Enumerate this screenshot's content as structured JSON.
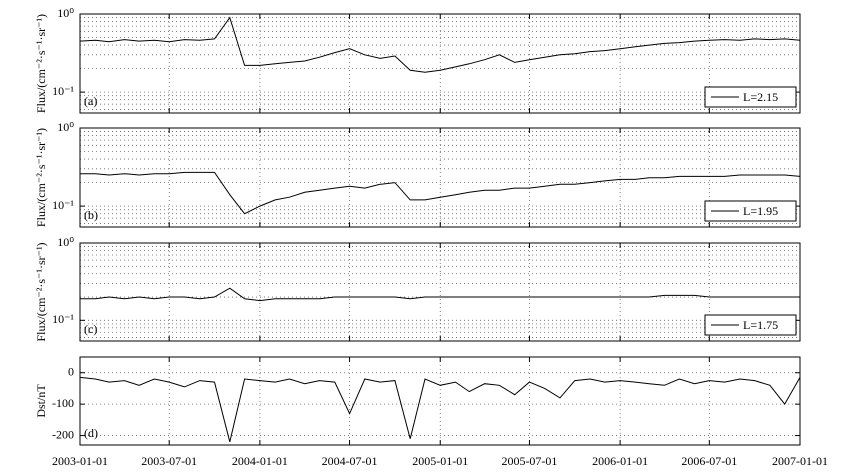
{
  "chart_data": [
    {
      "type": "line",
      "annotation": "(a)",
      "y_label": "Flux/(cm⁻²·s⁻¹·sr⁻¹)",
      "log_y": true,
      "grid": true,
      "legend": "lower right",
      "xlim": [
        "2003-01-01",
        "2007-01-01"
      ],
      "xticks": [
        "2003-01-01",
        "2003-07-01",
        "2004-01-01",
        "2004-07-01",
        "2005-01-01",
        "2005-07-01",
        "2006-01-01",
        "2006-07-01",
        "2007-01-01"
      ],
      "ylim": [
        0.054,
        1
      ],
      "yticks": [
        {
          "value": 1,
          "label": "10⁰"
        },
        {
          "value": 0.1,
          "label": "10⁻¹"
        }
      ],
      "yminorticks": [
        0.06,
        0.07,
        0.08,
        0.09,
        0.2,
        0.3,
        0.4,
        0.5,
        0.6,
        0.7,
        0.8,
        0.9
      ],
      "x": [
        "2003-01-01",
        "2003-02-01",
        "2003-03-01",
        "2003-04-01",
        "2003-05-01",
        "2003-06-01",
        "2003-07-01",
        "2003-08-01",
        "2003-09-01",
        "2003-10-01",
        "2003-11-01",
        "2003-12-01",
        "2004-01-01",
        "2004-02-01",
        "2004-03-01",
        "2004-04-01",
        "2004-05-01",
        "2004-06-01",
        "2004-07-01",
        "2004-08-01",
        "2004-09-01",
        "2004-10-01",
        "2004-11-01",
        "2004-12-01",
        "2005-01-01",
        "2005-02-01",
        "2005-03-01",
        "2005-04-01",
        "2005-05-01",
        "2005-06-01",
        "2005-07-01",
        "2005-08-01",
        "2005-09-01",
        "2005-10-01",
        "2005-11-01",
        "2005-12-01",
        "2006-01-01",
        "2006-02-01",
        "2006-03-01",
        "2006-04-01",
        "2006-05-01",
        "2006-06-01",
        "2006-07-01",
        "2006-08-01",
        "2006-09-01",
        "2006-10-01",
        "2006-11-01",
        "2006-12-01",
        "2007-01-01"
      ],
      "series": [
        {
          "name": "L=2.15",
          "color": "#000000",
          "values": [
            0.45,
            0.46,
            0.44,
            0.47,
            0.45,
            0.46,
            0.44,
            0.47,
            0.46,
            0.48,
            0.9,
            0.22,
            0.22,
            0.23,
            0.24,
            0.25,
            0.28,
            0.32,
            0.36,
            0.3,
            0.27,
            0.29,
            0.19,
            0.18,
            0.19,
            0.21,
            0.23,
            0.26,
            0.3,
            0.24,
            0.26,
            0.28,
            0.3,
            0.31,
            0.33,
            0.34,
            0.36,
            0.38,
            0.4,
            0.42,
            0.43,
            0.45,
            0.46,
            0.47,
            0.46,
            0.48,
            0.47,
            0.48,
            0.46
          ]
        }
      ]
    },
    {
      "type": "line",
      "annotation": "(b)",
      "y_label": "Flux/(cm⁻²·s⁻¹·sr⁻¹)",
      "log_y": true,
      "grid": true,
      "legend": "lower right",
      "xlim": [
        "2003-01-01",
        "2007-01-01"
      ],
      "xticks": [
        "2003-01-01",
        "2003-07-01",
        "2004-01-01",
        "2004-07-01",
        "2005-01-01",
        "2005-07-01",
        "2006-01-01",
        "2006-07-01",
        "2007-01-01"
      ],
      "ylim": [
        0.054,
        1
      ],
      "yticks": [
        {
          "value": 1,
          "label": "10⁰"
        },
        {
          "value": 0.1,
          "label": "10⁻¹"
        }
      ],
      "yminorticks": [
        0.06,
        0.07,
        0.08,
        0.09,
        0.2,
        0.3,
        0.4,
        0.5,
        0.6,
        0.7,
        0.8,
        0.9
      ],
      "x": [
        "2003-01-01",
        "2003-02-01",
        "2003-03-01",
        "2003-04-01",
        "2003-05-01",
        "2003-06-01",
        "2003-07-01",
        "2003-08-01",
        "2003-09-01",
        "2003-10-01",
        "2003-11-01",
        "2003-12-01",
        "2004-01-01",
        "2004-02-01",
        "2004-03-01",
        "2004-04-01",
        "2004-05-01",
        "2004-06-01",
        "2004-07-01",
        "2004-08-01",
        "2004-09-01",
        "2004-10-01",
        "2004-11-01",
        "2004-12-01",
        "2005-01-01",
        "2005-02-01",
        "2005-03-01",
        "2005-04-01",
        "2005-05-01",
        "2005-06-01",
        "2005-07-01",
        "2005-08-01",
        "2005-09-01",
        "2005-10-01",
        "2005-11-01",
        "2005-12-01",
        "2006-01-01",
        "2006-02-01",
        "2006-03-01",
        "2006-04-01",
        "2006-05-01",
        "2006-06-01",
        "2006-07-01",
        "2006-08-01",
        "2006-09-01",
        "2006-10-01",
        "2006-11-01",
        "2006-12-01",
        "2007-01-01"
      ],
      "series": [
        {
          "name": "L=1.95",
          "color": "#000000",
          "values": [
            0.26,
            0.26,
            0.25,
            0.26,
            0.25,
            0.26,
            0.26,
            0.27,
            0.27,
            0.27,
            0.14,
            0.08,
            0.1,
            0.12,
            0.13,
            0.15,
            0.16,
            0.17,
            0.18,
            0.17,
            0.19,
            0.2,
            0.12,
            0.12,
            0.13,
            0.14,
            0.15,
            0.16,
            0.16,
            0.17,
            0.17,
            0.18,
            0.19,
            0.19,
            0.2,
            0.21,
            0.22,
            0.22,
            0.23,
            0.23,
            0.24,
            0.24,
            0.24,
            0.24,
            0.25,
            0.25,
            0.25,
            0.25,
            0.24
          ]
        }
      ]
    },
    {
      "type": "line",
      "annotation": "(c)",
      "y_label": "Flux/(cm⁻²·s⁻¹·sr⁻¹)",
      "log_y": true,
      "grid": true,
      "legend": "lower right",
      "xlim": [
        "2003-01-01",
        "2007-01-01"
      ],
      "xticks": [
        "2003-01-01",
        "2003-07-01",
        "2004-01-01",
        "2004-07-01",
        "2005-01-01",
        "2005-07-01",
        "2006-01-01",
        "2006-07-01",
        "2007-01-01"
      ],
      "ylim": [
        0.054,
        1
      ],
      "yticks": [
        {
          "value": 1,
          "label": "10⁰"
        },
        {
          "value": 0.1,
          "label": "10⁻¹"
        }
      ],
      "yminorticks": [
        0.06,
        0.07,
        0.08,
        0.09,
        0.2,
        0.3,
        0.4,
        0.5,
        0.6,
        0.7,
        0.8,
        0.9
      ],
      "x": [
        "2003-01-01",
        "2003-02-01",
        "2003-03-01",
        "2003-04-01",
        "2003-05-01",
        "2003-06-01",
        "2003-07-01",
        "2003-08-01",
        "2003-09-01",
        "2003-10-01",
        "2003-11-01",
        "2003-12-01",
        "2004-01-01",
        "2004-02-01",
        "2004-03-01",
        "2004-04-01",
        "2004-05-01",
        "2004-06-01",
        "2004-07-01",
        "2004-08-01",
        "2004-09-01",
        "2004-10-01",
        "2004-11-01",
        "2004-12-01",
        "2005-01-01",
        "2005-02-01",
        "2005-03-01",
        "2005-04-01",
        "2005-05-01",
        "2005-06-01",
        "2005-07-01",
        "2005-08-01",
        "2005-09-01",
        "2005-10-01",
        "2005-11-01",
        "2005-12-01",
        "2006-01-01",
        "2006-02-01",
        "2006-03-01",
        "2006-04-01",
        "2006-05-01",
        "2006-06-01",
        "2006-07-01",
        "2006-08-01",
        "2006-09-01",
        "2006-10-01",
        "2006-11-01",
        "2006-12-01",
        "2007-01-01"
      ],
      "series": [
        {
          "name": "L=1.75",
          "color": "#000000",
          "values": [
            0.19,
            0.19,
            0.2,
            0.19,
            0.2,
            0.19,
            0.2,
            0.2,
            0.19,
            0.2,
            0.26,
            0.19,
            0.18,
            0.19,
            0.19,
            0.19,
            0.19,
            0.2,
            0.2,
            0.2,
            0.2,
            0.2,
            0.19,
            0.2,
            0.2,
            0.2,
            0.2,
            0.2,
            0.2,
            0.2,
            0.2,
            0.2,
            0.2,
            0.2,
            0.2,
            0.2,
            0.2,
            0.2,
            0.2,
            0.21,
            0.21,
            0.21,
            0.2,
            0.2,
            0.2,
            0.2,
            0.2,
            0.2,
            0.2
          ]
        }
      ]
    },
    {
      "type": "line",
      "annotation": "(d)",
      "y_label": "Dst/nT",
      "log_y": false,
      "grid": true,
      "show_x_labels": true,
      "xlim": [
        "2003-01-01",
        "2007-01-01"
      ],
      "xticks": [
        "2003-01-01",
        "2003-07-01",
        "2004-01-01",
        "2004-07-01",
        "2005-01-01",
        "2005-07-01",
        "2006-01-01",
        "2006-07-01",
        "2007-01-01"
      ],
      "ylim": [
        -230,
        50
      ],
      "yticks": [
        -200,
        -100,
        0
      ],
      "x": [
        "2003-01-01",
        "2003-02-01",
        "2003-03-01",
        "2003-04-01",
        "2003-05-01",
        "2003-06-01",
        "2003-07-01",
        "2003-08-01",
        "2003-09-01",
        "2003-10-01",
        "2003-11-01",
        "2003-12-01",
        "2004-01-01",
        "2004-02-01",
        "2004-03-01",
        "2004-04-01",
        "2004-05-01",
        "2004-06-01",
        "2004-07-01",
        "2004-08-01",
        "2004-09-01",
        "2004-10-01",
        "2004-11-01",
        "2004-12-01",
        "2005-01-01",
        "2005-02-01",
        "2005-03-01",
        "2005-04-01",
        "2005-05-01",
        "2005-06-01",
        "2005-07-01",
        "2005-08-01",
        "2005-09-01",
        "2005-10-01",
        "2005-11-01",
        "2005-12-01",
        "2006-01-01",
        "2006-02-01",
        "2006-03-01",
        "2006-04-01",
        "2006-05-01",
        "2006-06-01",
        "2006-07-01",
        "2006-08-01",
        "2006-09-01",
        "2006-10-01",
        "2006-11-01",
        "2006-12-01",
        "2007-01-01"
      ],
      "series": [
        {
          "color": "#000000",
          "values": [
            -15,
            -20,
            -30,
            -25,
            -40,
            -20,
            -30,
            -45,
            -25,
            -30,
            -220,
            -20,
            -25,
            -30,
            -20,
            -35,
            -25,
            -30,
            -130,
            -20,
            -30,
            -25,
            -210,
            -20,
            -40,
            -30,
            -60,
            -35,
            -40,
            -70,
            -30,
            -50,
            -80,
            -25,
            -20,
            -30,
            -25,
            -30,
            -35,
            -40,
            -20,
            -35,
            -25,
            -30,
            -20,
            -25,
            -40,
            -100,
            -15
          ]
        }
      ]
    }
  ]
}
